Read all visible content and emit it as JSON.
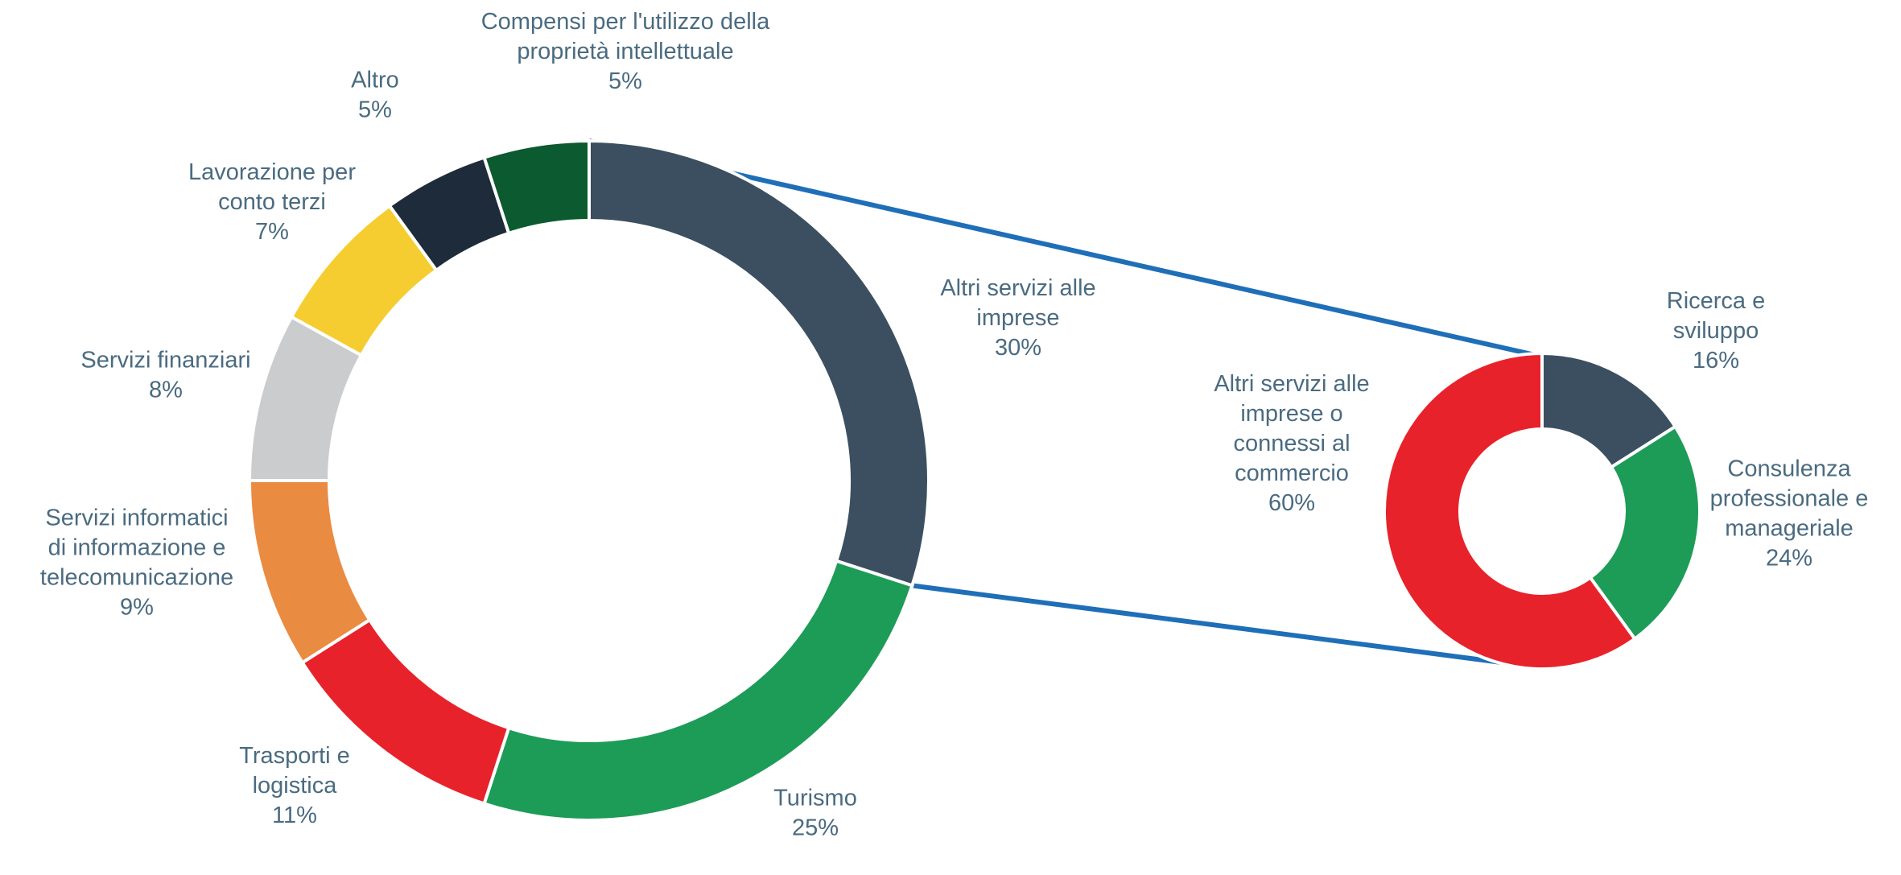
{
  "chart_data": [
    {
      "type": "pie",
      "variant": "donut",
      "categories": [
        "Altri servizi alle imprese",
        "Turismo",
        "Trasporti e logistica",
        "Servizi informatici di informazione e telecomunicazione",
        "Servizi finanziari",
        "Lavorazione per conto terzi",
        "Altro",
        "Compensi per l'utilizzo della proprietà intellettuale"
      ],
      "values": [
        30,
        25,
        11,
        9,
        8,
        7,
        5,
        5
      ],
      "value_labels": [
        "30%",
        "25%",
        "11%",
        "9%",
        "8%",
        "7%",
        "5%",
        "5%"
      ],
      "colors": [
        "#3b4f60",
        "#1d9c57",
        "#e8222b",
        "#ea8b42",
        "#cbcccd",
        "#f6cd31",
        "#1d2b3a",
        "#0c5a2f"
      ],
      "labels": [
        {
          "lines": [
            "Altri servizi alle",
            "imprese",
            "30%"
          ]
        },
        {
          "lines": [
            "Turismo",
            "25%"
          ]
        },
        {
          "lines": [
            "Trasporti e",
            "logistica",
            "11%"
          ]
        },
        {
          "lines": [
            "Servizi informatici",
            "di informazione e",
            "telecomunicazione",
            "9%"
          ]
        },
        {
          "lines": [
            "Servizi finanziari",
            "8%"
          ]
        },
        {
          "lines": [
            "Lavorazione per",
            "conto terzi",
            "7%"
          ]
        },
        {
          "lines": [
            "Altro",
            "5%"
          ]
        },
        {
          "lines": [
            "Compensi per l'utilizzo della",
            "proprietà intellettuale",
            "5%"
          ]
        }
      ],
      "exploded_category": "Altri servizi alle imprese",
      "title": ""
    },
    {
      "type": "pie",
      "variant": "donut",
      "parent_category": "Altri servizi alle imprese",
      "categories": [
        "Ricerca e sviluppo",
        "Consulenza professionale e manageriale",
        "Altri servizi alle imprese o connessi al commercio"
      ],
      "values": [
        16,
        24,
        60
      ],
      "value_labels": [
        "16%",
        "24%",
        "60%"
      ],
      "colors": [
        "#3b4f60",
        "#1d9c57",
        "#e8222b"
      ],
      "labels": [
        {
          "lines": [
            "Ricerca e",
            "sviluppo",
            "16%"
          ]
        },
        {
          "lines": [
            "Consulenza",
            "professionale e",
            "manageriale",
            "24%"
          ]
        },
        {
          "lines": [
            "Altri servizi alle",
            "imprese o",
            "connessi al",
            "commercio",
            "60%"
          ]
        }
      ],
      "title": ""
    }
  ],
  "connector_color": "#1f6fb8"
}
